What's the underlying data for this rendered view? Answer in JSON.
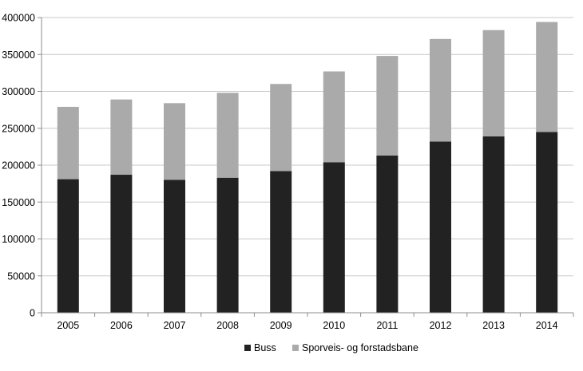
{
  "chart_data": {
    "type": "bar",
    "stacked": true,
    "title": "",
    "xlabel": "",
    "ylabel": "",
    "categories": [
      "2005",
      "2006",
      "2007",
      "2008",
      "2009",
      "2010",
      "2011",
      "2012",
      "2013",
      "2014"
    ],
    "series": [
      {
        "name": "Buss",
        "color": "#222222",
        "values": [
          181000,
          187000,
          180000,
          183000,
          192000,
          204000,
          213000,
          232000,
          239000,
          245000
        ]
      },
      {
        "name": "Sporveis- og forstadsbane",
        "color": "#aaaaaa",
        "values": [
          98000,
          102000,
          104000,
          115000,
          118000,
          123000,
          135000,
          139000,
          144000,
          149000
        ]
      }
    ],
    "ylim": [
      0,
      400000
    ],
    "yticks": [
      0,
      50000,
      100000,
      150000,
      200000,
      250000,
      300000,
      350000,
      400000
    ],
    "ytick_labels": [
      "0",
      "50000",
      "100000",
      "150000",
      "200000",
      "250000",
      "300000",
      "350000",
      "400000"
    ],
    "grid": true,
    "legend_position": "bottom-center"
  }
}
